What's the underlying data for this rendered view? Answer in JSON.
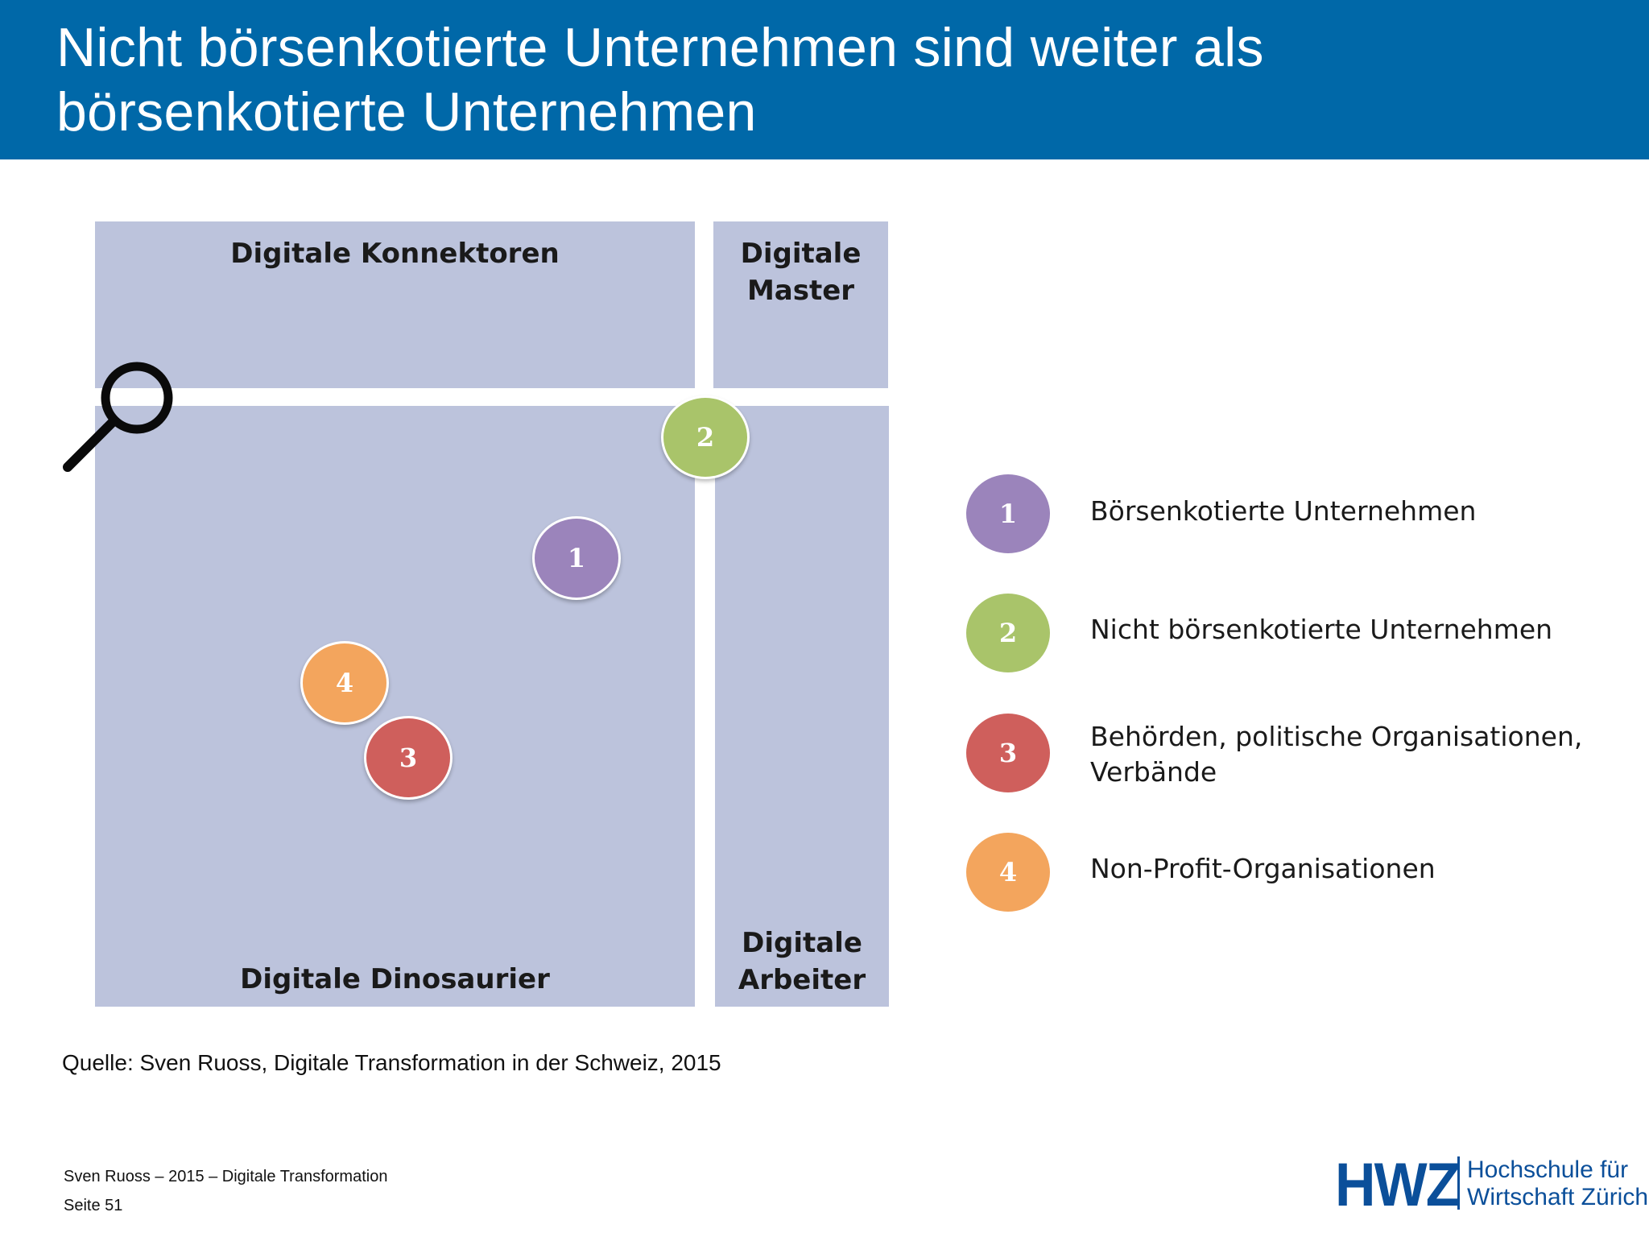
{
  "header": {
    "title_line_1": "Nicht börsenkotierte Unternehmen sind weiter als",
    "title_line_2": "börsenkotierte Unternehmen",
    "background": "#0068a8"
  },
  "matrix": {
    "quadrant_color": "#bcc3dc",
    "top_left": "Digitale Konnektoren",
    "top_right_line_1": "Digitale",
    "top_right_line_2": "Master",
    "bottom_left": "Digitale Dinosaurier",
    "bottom_right_line_1": "Digitale",
    "bottom_right_line_2": "Arbeiter",
    "bubbles": [
      {
        "number": "1",
        "color": "#9b84bb"
      },
      {
        "number": "2",
        "color": "#a9c46a"
      },
      {
        "number": "3",
        "color": "#cf5f5c"
      },
      {
        "number": "4",
        "color": "#f3a55d"
      }
    ],
    "icon": "magnifier-icon"
  },
  "legend": [
    {
      "number": "1",
      "color": "#9b84bb",
      "label_line_1": "Börsenkotierte Unternehmen",
      "label_line_2": ""
    },
    {
      "number": "2",
      "color": "#a9c46a",
      "label_line_1": "Nicht börsenkotierte Unternehmen",
      "label_line_2": ""
    },
    {
      "number": "3",
      "color": "#cf5f5c",
      "label_line_1": "Behörden, politische Organisationen,",
      "label_line_2": "Verbände"
    },
    {
      "number": "4",
      "color": "#f3a55d",
      "label_line_1": "Non-Profit-Organisationen",
      "label_line_2": ""
    }
  ],
  "source": "Quelle: Sven Ruoss, Digitale Transformation in der Schweiz, 2015",
  "footer": {
    "line_1": "Sven Ruoss – 2015 – Digitale Transformation",
    "line_2": "Seite 51"
  },
  "logo": {
    "mark": "HWZ",
    "line_1": "Hochschule für",
    "line_2": "Wirtschaft Zürich",
    "color": "#0b4f9a"
  }
}
